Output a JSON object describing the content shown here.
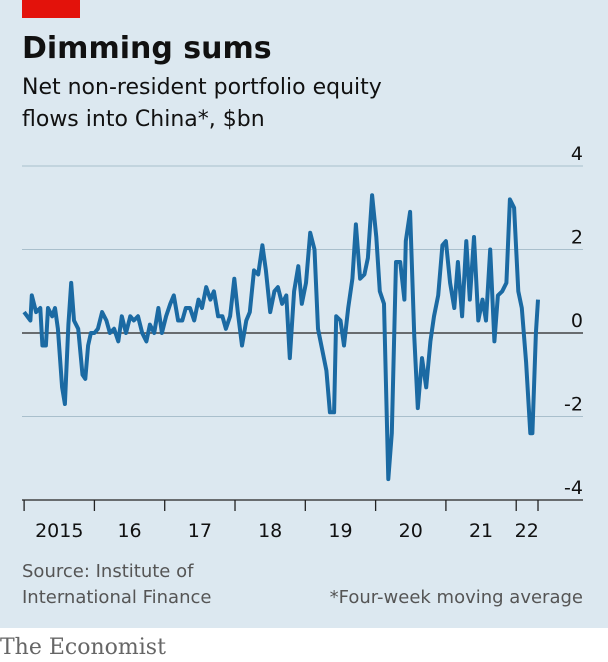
{
  "chart_data": {
    "type": "line",
    "title": "Dimming sums",
    "subtitle": [
      "Net non-resident portfolio equity",
      "flows into China*, $bn"
    ],
    "source": [
      "Source: Institute of",
      "International Finance"
    ],
    "footnote": "*Four-week moving average",
    "brand": "The Economist",
    "x": [
      2015.0,
      2015.09,
      2015.11,
      2015.17,
      2015.23,
      2015.26,
      2015.31,
      2015.34,
      2015.4,
      2015.44,
      2015.48,
      2015.54,
      2015.58,
      2015.63,
      2015.67,
      2015.71,
      2015.77,
      2015.83,
      2015.87,
      2015.91,
      2015.95,
      2016.0,
      2016.05,
      2016.11,
      2016.17,
      2016.22,
      2016.28,
      2016.34,
      2016.39,
      2016.45,
      2016.51,
      2016.56,
      2016.62,
      2016.68,
      2016.74,
      2016.79,
      2016.85,
      2016.91,
      2016.96,
      2017.02,
      2017.08,
      2017.13,
      2017.19,
      2017.25,
      2017.3,
      2017.36,
      2017.42,
      2017.48,
      2017.53,
      2017.59,
      2017.65,
      2017.7,
      2017.76,
      2017.82,
      2017.87,
      2017.93,
      2017.99,
      2018.04,
      2018.1,
      2018.16,
      2018.21,
      2018.27,
      2018.33,
      2018.39,
      2018.44,
      2018.5,
      2018.56,
      2018.61,
      2018.67,
      2018.73,
      2018.78,
      2018.84,
      2018.9,
      2018.95,
      2019.01,
      2019.07,
      2019.13,
      2019.18,
      2019.24,
      2019.3,
      2019.35,
      2019.41,
      2019.44,
      2019.5,
      2019.55,
      2019.61,
      2019.67,
      2019.72,
      2019.78,
      2019.84,
      2019.89,
      2019.95,
      2020.01,
      2020.06,
      2020.12,
      2020.18,
      2020.23,
      2020.29,
      2020.35,
      2020.41,
      2020.43,
      2020.49,
      2020.55,
      2020.6,
      2020.66,
      2020.72,
      2020.78,
      2020.83,
      2020.89,
      2020.95,
      2021.0,
      2021.06,
      2021.12,
      2021.17,
      2021.23,
      2021.29,
      2021.34,
      2021.4,
      2021.46,
      2021.52,
      2021.57,
      2021.63,
      2021.69,
      2021.74,
      2021.8,
      2021.86,
      2021.91,
      2021.97,
      2022.03,
      2022.08,
      2022.14,
      2022.2,
      2022.23,
      2022.28,
      2022.31
    ],
    "series": [
      {
        "color": "#1b6aa3",
        "values": [
          0.5,
          0.3,
          0.9,
          0.5,
          0.6,
          -0.3,
          -0.3,
          0.6,
          0.4,
          0.6,
          0.1,
          -1.3,
          -1.7,
          0.2,
          1.2,
          0.3,
          0.1,
          -1.0,
          -1.1,
          -0.3,
          0.0,
          0.0,
          0.1,
          0.5,
          0.3,
          0.0,
          0.1,
          -0.2,
          0.4,
          0.0,
          0.4,
          0.3,
          0.4,
          0.0,
          -0.2,
          0.2,
          0.0,
          0.6,
          0.0,
          0.4,
          0.7,
          0.9,
          0.3,
          0.3,
          0.6,
          0.6,
          0.3,
          0.8,
          0.6,
          1.1,
          0.8,
          1.0,
          0.4,
          0.4,
          0.1,
          0.4,
          1.3,
          0.5,
          -0.3,
          0.3,
          0.5,
          1.5,
          1.4,
          2.1,
          1.5,
          0.5,
          1.0,
          1.1,
          0.7,
          0.9,
          -0.6,
          1.0,
          1.6,
          0.7,
          1.2,
          2.4,
          2.0,
          0.1,
          -0.4,
          -0.9,
          -1.9,
          -1.9,
          0.4,
          0.3,
          -0.3,
          0.6,
          1.3,
          2.6,
          1.3,
          1.4,
          1.8,
          3.3,
          2.3,
          1.0,
          0.7,
          -3.5,
          -2.4,
          1.7,
          1.7,
          0.8,
          2.2,
          2.9,
          -0.1,
          -1.8,
          -0.6,
          -1.3,
          -0.2,
          0.4,
          0.9,
          2.1,
          2.2,
          1.2,
          0.6,
          1.7,
          0.4,
          2.2,
          0.8,
          2.3,
          0.3,
          0.8,
          0.3,
          2.0,
          -0.2,
          0.9,
          1.0,
          1.2,
          3.2,
          3.0,
          1.0,
          0.6,
          -0.7,
          -2.4,
          -2.4,
          0.0,
          0.8
        ]
      }
    ],
    "xlim": [
      2014.97,
      2022.95
    ],
    "xticks": [
      2015,
      2016,
      2017,
      2018,
      2019,
      2020,
      2021,
      2022,
      2022.31
    ],
    "xtick_labels": [
      {
        "value": 2015.5,
        "label": "2015"
      },
      {
        "value": 2016.5,
        "label": "16"
      },
      {
        "value": 2017.5,
        "label": "17"
      },
      {
        "value": 2018.5,
        "label": "18"
      },
      {
        "value": 2019.5,
        "label": "19"
      },
      {
        "value": 2020.5,
        "label": "20"
      },
      {
        "value": 2021.5,
        "label": "21"
      },
      {
        "value": 2022.15,
        "label": "22"
      }
    ],
    "ylim": [
      -4,
      4
    ],
    "yticks": [
      4,
      2,
      0,
      -2,
      -4
    ],
    "grid": true
  }
}
